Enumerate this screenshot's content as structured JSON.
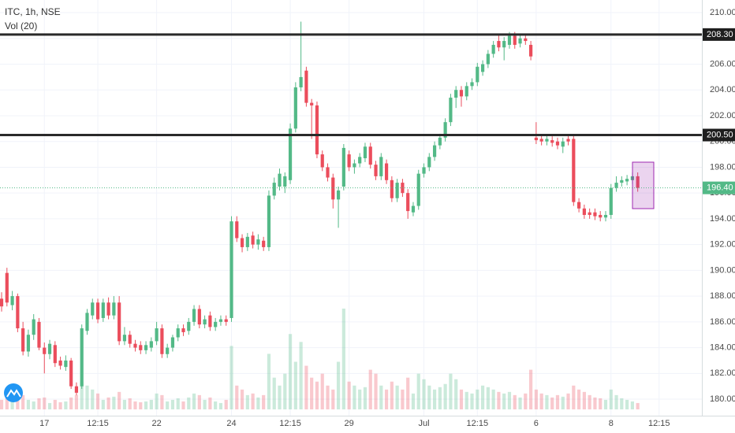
{
  "chart_data": {
    "type": "candlestick",
    "title": "ITC, 1h, NSE",
    "subtitle": "Vol (20)",
    "up_color": "#53b987",
    "down_color": "#eb4d5c",
    "ylim": [
      178.72,
      210.98
    ],
    "xlim": [
      -0.3,
      131
    ],
    "yticks": [
      {
        "value": 180,
        "label": "180.00"
      },
      {
        "value": 182,
        "label": "182.00"
      },
      {
        "value": 184,
        "label": "184.00"
      },
      {
        "value": 186,
        "label": "186.00"
      },
      {
        "value": 188,
        "label": "188.00"
      },
      {
        "value": 190,
        "label": "190.00"
      },
      {
        "value": 192,
        "label": "192.00"
      },
      {
        "value": 194,
        "label": "194.00"
      },
      {
        "value": 196,
        "label": "196.00"
      },
      {
        "value": 198,
        "label": "198.00"
      },
      {
        "value": 200,
        "label": "200.00"
      },
      {
        "value": 202,
        "label": "202.00"
      },
      {
        "value": 204,
        "label": "204.00"
      },
      {
        "value": 206,
        "label": "206.00"
      },
      {
        "value": 208,
        "label": "208.00"
      },
      {
        "value": 210,
        "label": "210.00"
      }
    ],
    "xticks": [
      {
        "value": 8,
        "label": "17"
      },
      {
        "value": 18,
        "label": "12:15"
      },
      {
        "value": 29,
        "label": "22"
      },
      {
        "value": 43,
        "label": "24"
      },
      {
        "value": 54,
        "label": "12:15"
      },
      {
        "value": 65,
        "label": "29"
      },
      {
        "value": 79,
        "label": "Jul"
      },
      {
        "value": 89,
        "label": "12:15"
      },
      {
        "value": 100,
        "label": "6"
      },
      {
        "value": 114,
        "label": "8"
      },
      {
        "value": 123,
        "label": "12:15"
      }
    ],
    "levels": [
      {
        "value": 208.3,
        "label": "208.30"
      },
      {
        "value": 200.5,
        "label": "200.50"
      }
    ],
    "last_price": {
      "value": 196.4,
      "label": "196.40"
    },
    "ohlc": [
      [
        187.8,
        188.3,
        186.8,
        187.2
      ],
      [
        189.8,
        190.2,
        187.2,
        187.5
      ],
      [
        187.3,
        188.4,
        186.9,
        188.0
      ],
      [
        188.0,
        188.2,
        185.2,
        185.5
      ],
      [
        185.5,
        186.0,
        183.4,
        183.7
      ],
      [
        183.7,
        185.4,
        183.3,
        185.0
      ],
      [
        185.0,
        186.6,
        184.6,
        186.2
      ],
      [
        186.0,
        186.3,
        183.8,
        184.0
      ],
      [
        184.0,
        184.4,
        182.0,
        183.5
      ],
      [
        183.5,
        184.6,
        183.1,
        184.3
      ],
      [
        184.2,
        184.5,
        182.5,
        182.8
      ],
      [
        183.0,
        183.3,
        182.3,
        182.6
      ],
      [
        182.5,
        183.4,
        182.2,
        183.0
      ],
      [
        183.0,
        183.2,
        180.8,
        181.0
      ],
      [
        181.0,
        181.3,
        180.3,
        180.5
      ],
      [
        181.0,
        185.8,
        180.8,
        185.5
      ],
      [
        185.3,
        187.0,
        185.0,
        186.7
      ],
      [
        186.5,
        187.8,
        186.2,
        187.5
      ],
      [
        187.5,
        187.8,
        185.9,
        186.2
      ],
      [
        186.3,
        187.8,
        186.0,
        187.5
      ],
      [
        187.5,
        187.9,
        186.2,
        186.5
      ],
      [
        186.5,
        188.0,
        186.2,
        187.5
      ],
      [
        187.5,
        188.0,
        184.2,
        184.5
      ],
      [
        184.5,
        185.6,
        184.2,
        185.0
      ],
      [
        185.0,
        185.3,
        184.0,
        184.3
      ],
      [
        184.3,
        184.6,
        183.7,
        184.0
      ],
      [
        184.2,
        184.5,
        183.5,
        183.8
      ],
      [
        183.8,
        184.5,
        183.5,
        184.2
      ],
      [
        184.0,
        184.8,
        183.7,
        184.5
      ],
      [
        184.5,
        186.0,
        184.2,
        185.5
      ],
      [
        185.5,
        185.8,
        183.2,
        183.5
      ],
      [
        183.5,
        184.3,
        183.2,
        184.0
      ],
      [
        184.0,
        185.0,
        183.7,
        184.8
      ],
      [
        184.8,
        185.8,
        184.5,
        185.5
      ],
      [
        185.5,
        185.8,
        184.9,
        185.2
      ],
      [
        185.3,
        186.3,
        185.0,
        186.0
      ],
      [
        186.0,
        187.3,
        185.7,
        187.0
      ],
      [
        187.0,
        187.3,
        185.5,
        185.8
      ],
      [
        185.8,
        186.5,
        185.5,
        186.2
      ],
      [
        186.5,
        186.8,
        185.3,
        185.6
      ],
      [
        185.6,
        186.3,
        185.3,
        186.0
      ],
      [
        186.0,
        186.5,
        185.7,
        186.2
      ],
      [
        186.2,
        186.5,
        185.7,
        186.0
      ],
      [
        186.3,
        194.2,
        186.0,
        193.8
      ],
      [
        193.8,
        194.2,
        192.2,
        192.5
      ],
      [
        192.5,
        192.8,
        191.4,
        191.8
      ],
      [
        191.8,
        192.9,
        191.5,
        192.6
      ],
      [
        192.7,
        193.0,
        191.7,
        192.0
      ],
      [
        192.0,
        192.8,
        191.6,
        192.4
      ],
      [
        192.3,
        192.6,
        191.5,
        191.8
      ],
      [
        191.8,
        196.2,
        191.5,
        195.8
      ],
      [
        195.8,
        197.2,
        195.5,
        196.8
      ],
      [
        196.5,
        197.9,
        196.2,
        197.5
      ],
      [
        196.5,
        197.6,
        196.0,
        197.3
      ],
      [
        197.0,
        201.4,
        196.7,
        201.0
      ],
      [
        201.0,
        204.6,
        200.7,
        204.2
      ],
      [
        204.2,
        209.3,
        203.9,
        205.0
      ],
      [
        205.5,
        205.8,
        202.7,
        203.0
      ],
      [
        203.0,
        203.3,
        200.2,
        202.8
      ],
      [
        202.8,
        203.1,
        198.7,
        199.0
      ],
      [
        199.0,
        199.3,
        197.7,
        198.0
      ],
      [
        198.0,
        198.3,
        196.9,
        197.2
      ],
      [
        197.2,
        197.5,
        194.8,
        195.5
      ],
      [
        195.5,
        196.5,
        193.3,
        196.2
      ],
      [
        196.5,
        199.8,
        196.2,
        199.5
      ],
      [
        199.0,
        199.3,
        197.7,
        198.0
      ],
      [
        198.0,
        198.6,
        197.5,
        198.3
      ],
      [
        198.3,
        199.1,
        198.0,
        198.8
      ],
      [
        198.7,
        199.9,
        198.4,
        199.6
      ],
      [
        199.6,
        199.9,
        197.9,
        198.2
      ],
      [
        198.2,
        198.5,
        197.0,
        197.3
      ],
      [
        197.3,
        199.1,
        197.0,
        198.8
      ],
      [
        198.3,
        198.6,
        196.7,
        197.0
      ],
      [
        197.0,
        197.3,
        195.3,
        195.6
      ],
      [
        195.6,
        197.1,
        195.3,
        196.8
      ],
      [
        196.8,
        197.1,
        195.7,
        196.0
      ],
      [
        196.0,
        196.3,
        194.0,
        194.6
      ],
      [
        194.5,
        195.3,
        194.2,
        195.0
      ],
      [
        195.0,
        197.8,
        194.7,
        197.5
      ],
      [
        197.5,
        198.3,
        197.2,
        198.0
      ],
      [
        198.0,
        199.1,
        197.7,
        198.8
      ],
      [
        198.8,
        200.0,
        198.5,
        199.7
      ],
      [
        199.7,
        200.6,
        199.4,
        200.3
      ],
      [
        200.3,
        201.8,
        200.0,
        201.5
      ],
      [
        201.5,
        203.7,
        201.2,
        203.4
      ],
      [
        203.4,
        204.3,
        202.6,
        204.0
      ],
      [
        204.0,
        204.3,
        202.7,
        203.5
      ],
      [
        203.5,
        204.6,
        203.2,
        204.3
      ],
      [
        204.3,
        204.9,
        204.0,
        204.6
      ],
      [
        204.6,
        206.1,
        204.3,
        205.8
      ],
      [
        205.4,
        206.3,
        205.1,
        206.0
      ],
      [
        206.0,
        207.1,
        205.7,
        206.8
      ],
      [
        206.8,
        207.8,
        206.5,
        207.5
      ],
      [
        207.8,
        208.3,
        207.0,
        207.3
      ],
      [
        207.3,
        208.1,
        206.3,
        207.8
      ],
      [
        207.5,
        208.5,
        207.2,
        208.2
      ],
      [
        208.2,
        208.5,
        207.2,
        207.5
      ],
      [
        207.6,
        208.3,
        207.3,
        208.0
      ],
      [
        208.0,
        208.3,
        207.5,
        207.8
      ],
      [
        207.5,
        207.8,
        206.3,
        206.6
      ],
      [
        200.3,
        201.5,
        199.8,
        200.1
      ],
      [
        200.2,
        200.5,
        199.7,
        200.0
      ],
      [
        200.0,
        200.5,
        199.7,
        200.2
      ],
      [
        200.1,
        200.4,
        199.6,
        199.9
      ],
      [
        200.0,
        200.3,
        199.4,
        199.7
      ],
      [
        199.6,
        200.3,
        199.1,
        200.0
      ],
      [
        200.2,
        200.5,
        199.7,
        200.0
      ],
      [
        200.2,
        200.5,
        195.0,
        195.3
      ],
      [
        195.3,
        195.6,
        194.5,
        194.8
      ],
      [
        194.8,
        195.1,
        194.0,
        194.3
      ],
      [
        194.5,
        194.8,
        194.0,
        194.3
      ],
      [
        194.5,
        194.8,
        193.9,
        194.2
      ],
      [
        194.3,
        194.6,
        193.8,
        194.1
      ],
      [
        194.1,
        194.6,
        193.8,
        194.3
      ],
      [
        194.3,
        196.7,
        194.0,
        196.4
      ],
      [
        196.4,
        197.3,
        196.1,
        196.8
      ],
      [
        196.8,
        197.3,
        196.5,
        197.0
      ],
      [
        196.9,
        197.4,
        196.6,
        197.1
      ],
      [
        197.0,
        197.6,
        196.7,
        197.3
      ],
      [
        197.3,
        197.6,
        196.1,
        196.4
      ]
    ],
    "volume": [
      12,
      25,
      10,
      20,
      18,
      12,
      10,
      14,
      15,
      8,
      12,
      9,
      10,
      15,
      18,
      35,
      30,
      25,
      20,
      12,
      15,
      16,
      22,
      12,
      14,
      10,
      9,
      10,
      12,
      20,
      18,
      10,
      12,
      14,
      10,
      15,
      20,
      18,
      12,
      15,
      10,
      8,
      12,
      80,
      30,
      25,
      18,
      20,
      15,
      18,
      70,
      40,
      30,
      45,
      95,
      60,
      85,
      55,
      40,
      35,
      45,
      30,
      25,
      60,
      127,
      35,
      30,
      25,
      28,
      50,
      45,
      30,
      25,
      35,
      30,
      25,
      40,
      20,
      45,
      38,
      30,
      25,
      28,
      32,
      45,
      38,
      25,
      22,
      20,
      25,
      30,
      28,
      25,
      22,
      20,
      22,
      18,
      15,
      20,
      50,
      25,
      20,
      18,
      15,
      18,
      16,
      20,
      30,
      25,
      22,
      18,
      15,
      14,
      12,
      25,
      18,
      14,
      12,
      10,
      8
    ]
  }
}
